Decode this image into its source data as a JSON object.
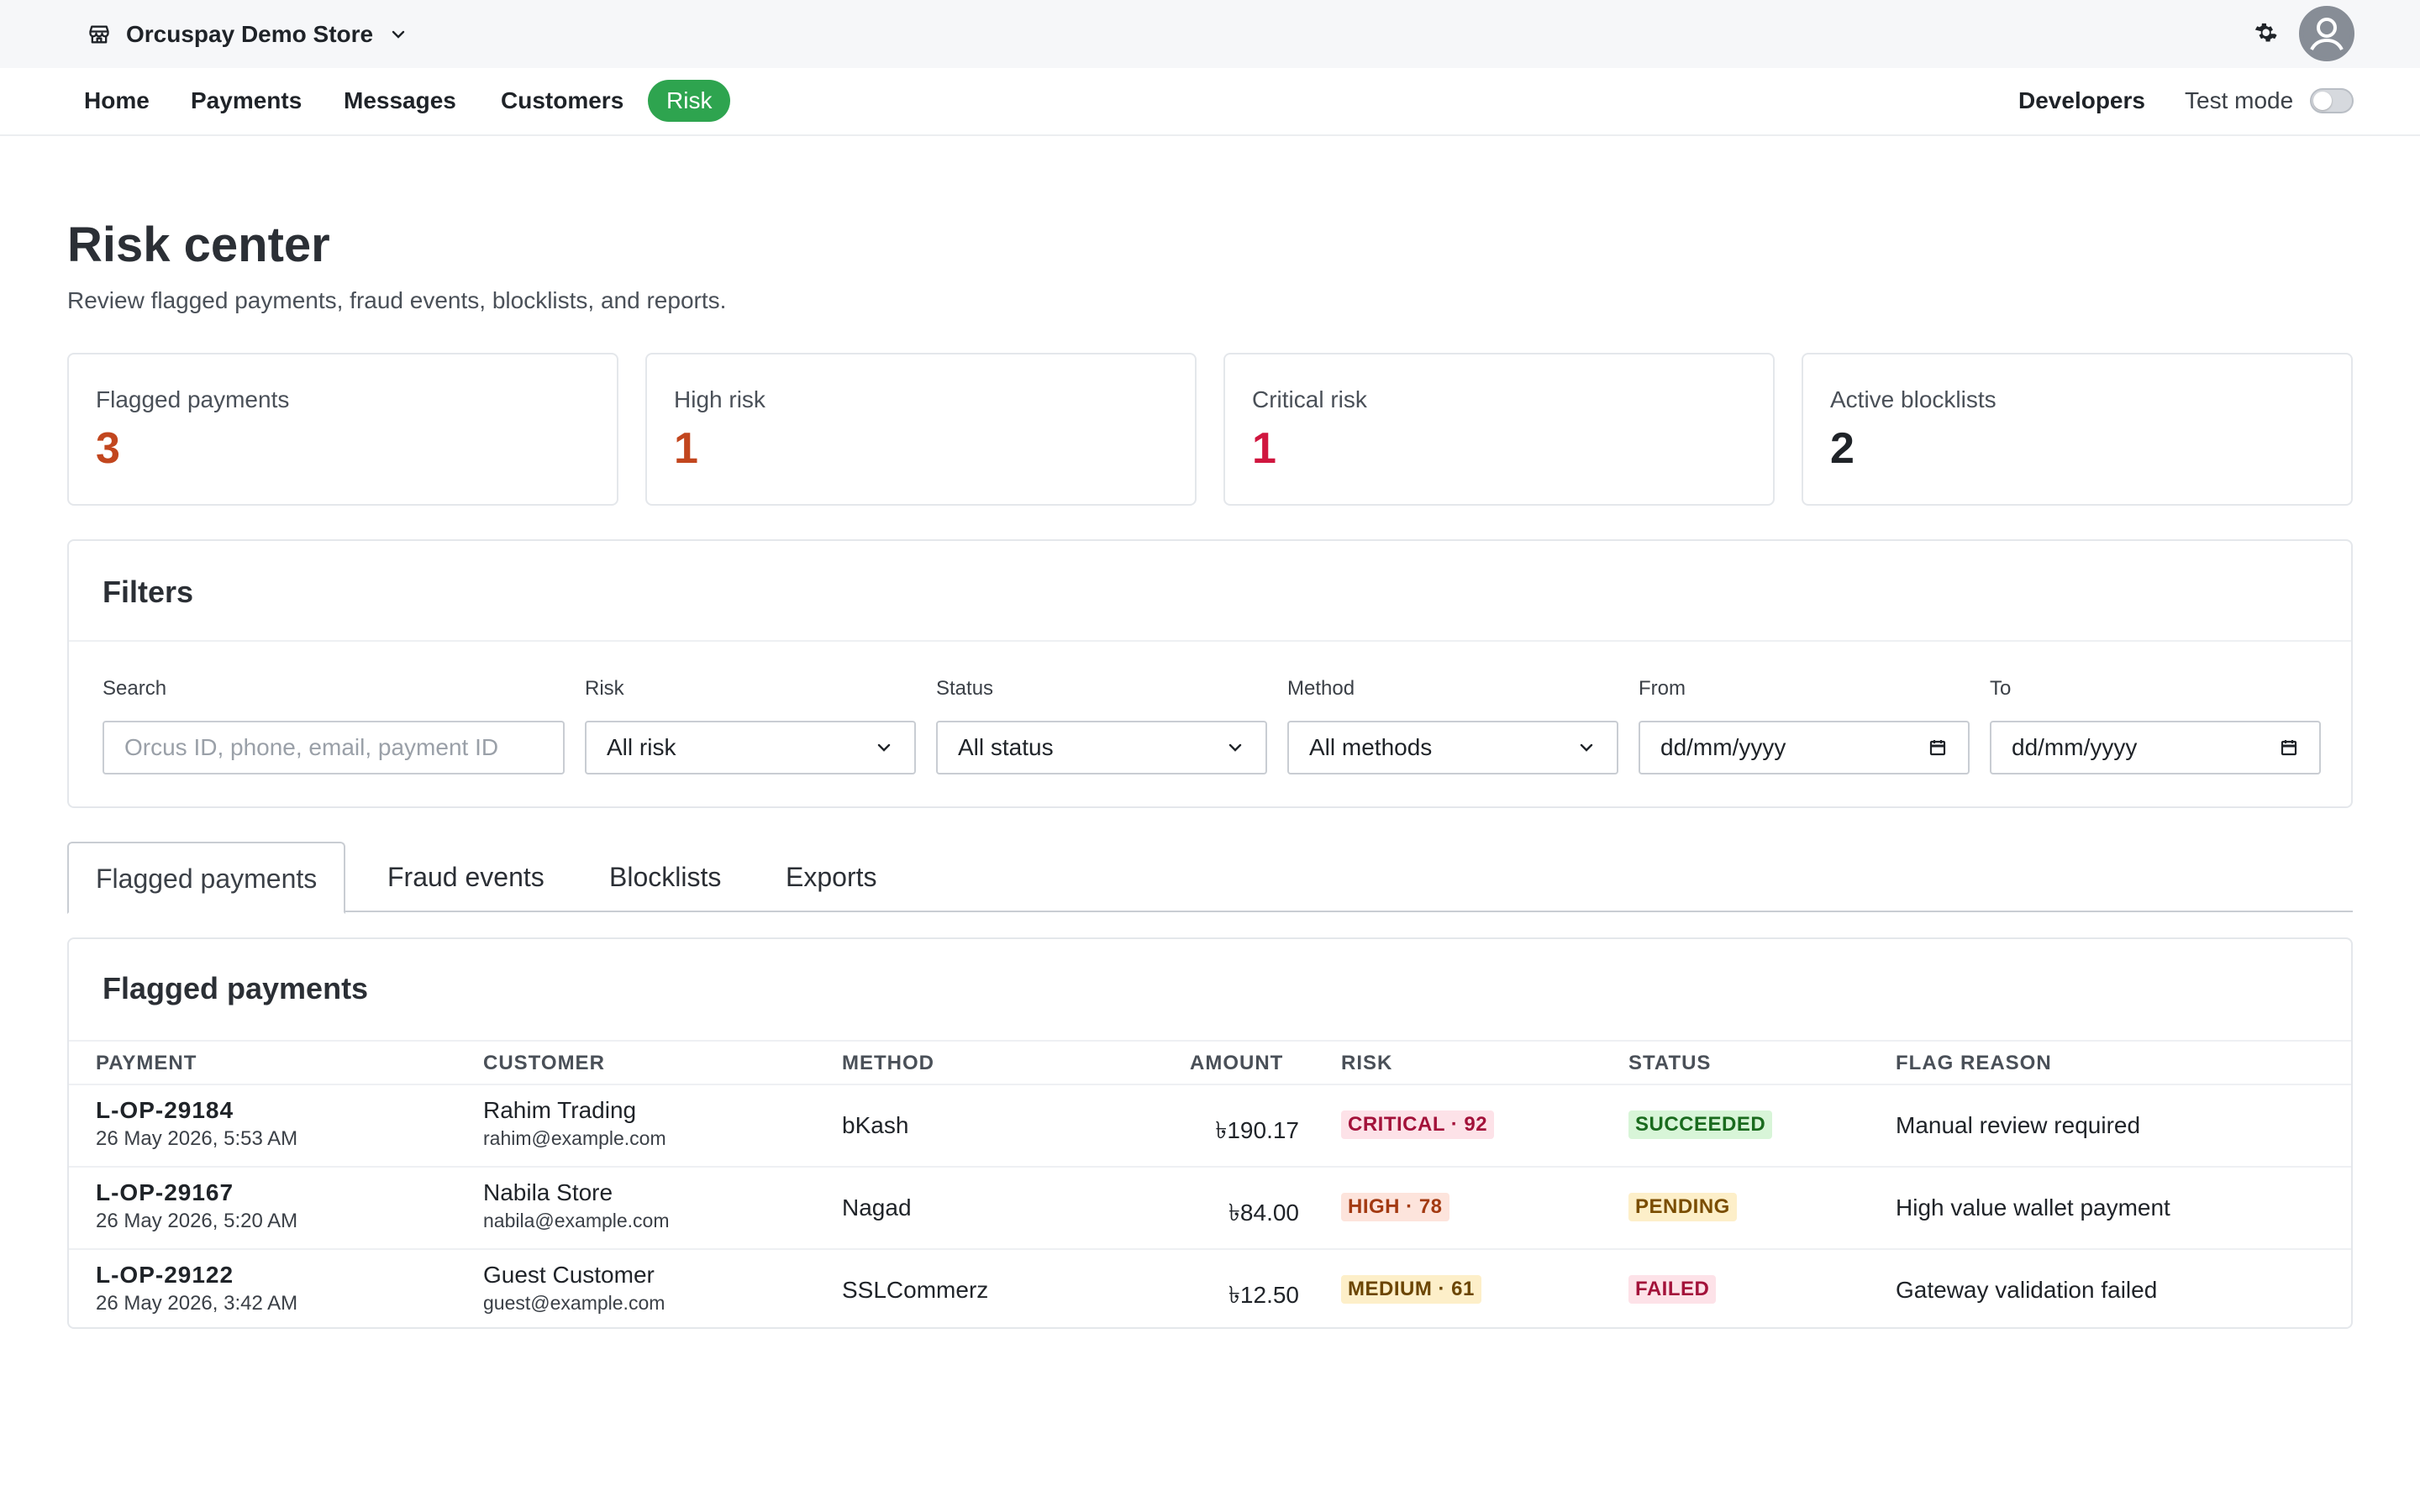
{
  "topbar": {
    "store_name": "Orcuspay Demo Store",
    "icons": [
      "store-icon",
      "chevron-down-icon",
      "gear-icon",
      "avatar-icon"
    ]
  },
  "nav": {
    "items": [
      {
        "label": "Home"
      },
      {
        "label": "Payments"
      },
      {
        "label": "Messages"
      },
      {
        "label": "Customers"
      },
      {
        "label": "Risk",
        "active": true
      }
    ],
    "developers": "Developers",
    "test_mode": "Test mode",
    "test_mode_on": false,
    "accent": "#2ea44f"
  },
  "page": {
    "title": "Risk center",
    "subtitle": "Review flagged payments, fraud events, blocklists, and reports."
  },
  "stats": [
    {
      "label": "Flagged payments",
      "value": "3",
      "color": "#c2461e"
    },
    {
      "label": "High risk",
      "value": "1",
      "color": "#c2461e"
    },
    {
      "label": "Critical risk",
      "value": "1",
      "color": "#d0163f"
    },
    {
      "label": "Active blocklists",
      "value": "2",
      "color": "#1f2328"
    }
  ],
  "filters": {
    "title": "Filters",
    "search_label": "Search",
    "search_placeholder": "Orcus ID, phone, email, payment ID",
    "risk_label": "Risk",
    "risk_value": "All risk",
    "status_label": "Status",
    "status_value": "All status",
    "method_label": "Method",
    "method_value": "All methods",
    "from_label": "From",
    "from_value": "dd/mm/yyyy",
    "to_label": "To",
    "to_value": "dd/mm/yyyy"
  },
  "tabs": [
    {
      "label": "Flagged payments",
      "active": true
    },
    {
      "label": "Fraud events"
    },
    {
      "label": "Blocklists"
    },
    {
      "label": "Exports"
    }
  ],
  "table": {
    "title": "Flagged payments",
    "columns": [
      "PAYMENT",
      "CUSTOMER",
      "METHOD",
      "AMOUNT",
      "RISK",
      "STATUS",
      "FLAG REASON"
    ],
    "rows": [
      {
        "payment_id": "L-OP-29184",
        "date": "26 May 2026, 5:53 AM",
        "customer_name": "Rahim Trading",
        "customer_email": "rahim@example.com",
        "method": "bKash",
        "amount": "৳190.17",
        "risk": "CRITICAL · 92",
        "risk_bg": "#fde2e8",
        "risk_fg": "#a3123a",
        "status": "SUCCEEDED",
        "status_bg": "#d8f5d8",
        "status_fg": "#1a6b1e",
        "reason": "Manual review required"
      },
      {
        "payment_id": "L-OP-29167",
        "date": "26 May 2026, 5:20 AM",
        "customer_name": "Nabila Store",
        "customer_email": "nabila@example.com",
        "method": "Nagad",
        "amount": "৳84.00",
        "risk": "HIGH · 78",
        "risk_bg": "#fde4dc",
        "risk_fg": "#a33a12",
        "status": "PENDING",
        "status_bg": "#fdefc9",
        "status_fg": "#7a4d00",
        "reason": "High value wallet payment"
      },
      {
        "payment_id": "L-OP-29122",
        "date": "26 May 2026, 3:42 AM",
        "customer_name": "Guest Customer",
        "customer_email": "guest@example.com",
        "method": "SSLCommerz",
        "amount": "৳12.50",
        "risk": "MEDIUM · 61",
        "risk_bg": "#fdefc9",
        "risk_fg": "#6b4500",
        "status": "FAILED",
        "status_bg": "#fde2e8",
        "status_fg": "#a3123a",
        "reason": "Gateway validation failed"
      }
    ]
  }
}
